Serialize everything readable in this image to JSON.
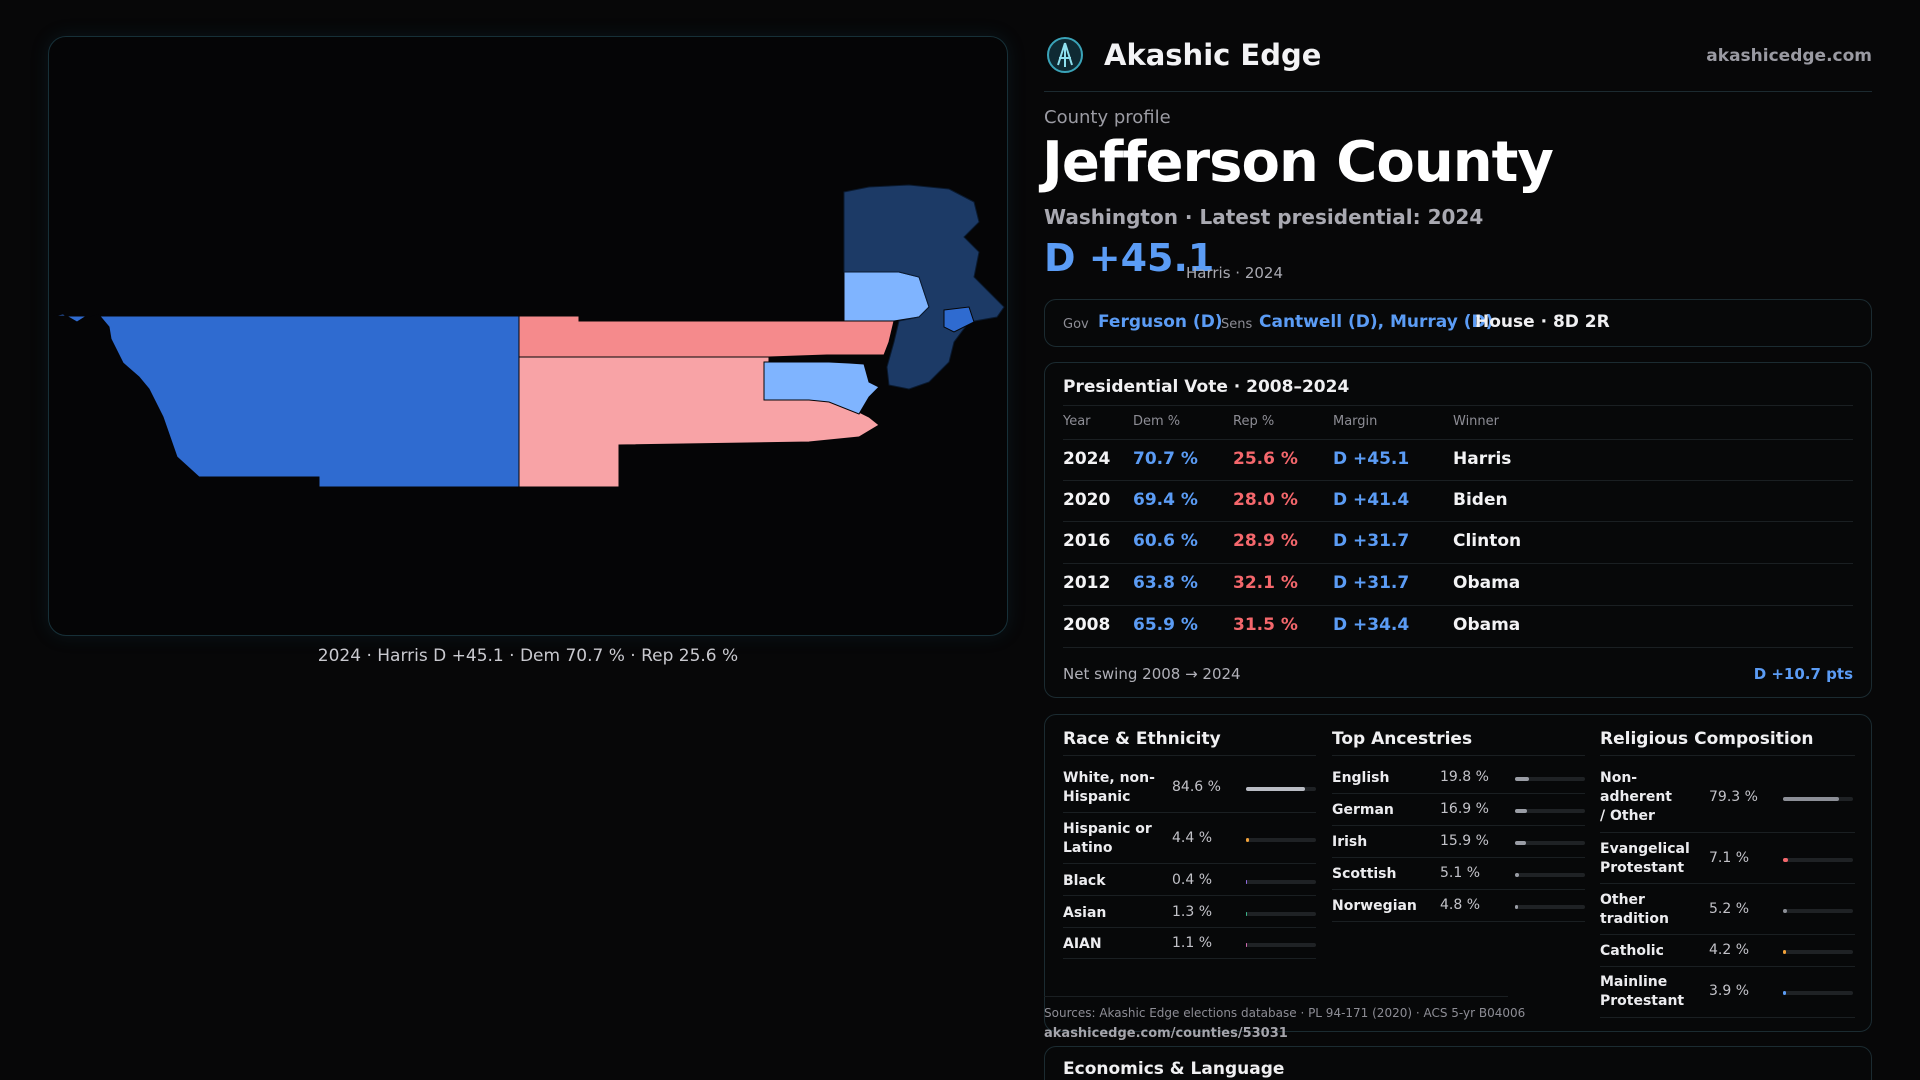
{
  "brand": {
    "name": "Akashic Edge",
    "site": "akashicedge.com",
    "logo_icon": "compass-logo-icon"
  },
  "profile": {
    "kicker": "County profile",
    "county": "Jefferson County",
    "subtitle": "Washington · Latest presidential: 2024",
    "margin": "D +45.1",
    "margin_note": "Harris · 2024"
  },
  "map": {
    "caption": "2024 · Harris D +45.1 · Dem 70.7 % · Rep 25.6 %",
    "colors": {
      "dem_strong": "#2f6bd0",
      "dem_light": "#7fb4ff",
      "dem_dark": "#1c3a66",
      "rep": "#f58a8c",
      "rep_light": "#f8a3a6"
    }
  },
  "officials": {
    "gov_label": "Gov",
    "gov": "Ferguson (D)",
    "sens_label": "Sens",
    "sens": "Cantwell (D), Murray (D)",
    "house": "House · 8D 2R"
  },
  "presidential": {
    "title": "Presidential Vote · 2008–2024",
    "headers": [
      "Year",
      "Dem %",
      "Rep %",
      "Margin",
      "Winner"
    ],
    "rows": [
      {
        "year": "2024",
        "dem": "70.7 %",
        "rep": "25.6 %",
        "margin": "D +45.1",
        "winner": "Harris"
      },
      {
        "year": "2020",
        "dem": "69.4 %",
        "rep": "28.0 %",
        "margin": "D +41.4",
        "winner": "Biden"
      },
      {
        "year": "2016",
        "dem": "60.6 %",
        "rep": "28.9 %",
        "margin": "D +31.7",
        "winner": "Clinton"
      },
      {
        "year": "2012",
        "dem": "63.8 %",
        "rep": "32.1 %",
        "margin": "D +31.7",
        "winner": "Obama"
      },
      {
        "year": "2008",
        "dem": "65.9 %",
        "rep": "31.5 %",
        "margin": "D +34.4",
        "winner": "Obama"
      }
    ],
    "swing_label": "Net swing 2008 → 2024",
    "swing_value": "D +10.7 pts"
  },
  "race": {
    "title": "Race & Ethnicity",
    "rows": [
      {
        "label": "White, non-Hispanic",
        "value": "84.6 %",
        "pct": 84.6,
        "color": "#b9bcc4"
      },
      {
        "label": "Hispanic or Latino",
        "value": "4.4 %",
        "pct": 4.4,
        "color": "#f2a23a"
      },
      {
        "label": "Black",
        "value": "0.4 %",
        "pct": 0.4,
        "color": "#8f6adf"
      },
      {
        "label": "Asian",
        "value": "1.3 %",
        "pct": 1.3,
        "color": "#3ab58a"
      },
      {
        "label": "AIAN",
        "value": "1.1 %",
        "pct": 1.1,
        "color": "#d06ab0"
      }
    ]
  },
  "ancestry": {
    "title": "Top Ancestries",
    "rows": [
      {
        "label": "English",
        "value": "19.8 %",
        "pct": 19.8,
        "color": "#9a9da5"
      },
      {
        "label": "German",
        "value": "16.9 %",
        "pct": 16.9,
        "color": "#9a9da5"
      },
      {
        "label": "Irish",
        "value": "15.9 %",
        "pct": 15.9,
        "color": "#9a9da5"
      },
      {
        "label": "Scottish",
        "value": "5.1 %",
        "pct": 5.1,
        "color": "#9a9da5"
      },
      {
        "label": "Norwegian",
        "value": "4.8 %",
        "pct": 4.8,
        "color": "#9a9da5"
      }
    ]
  },
  "religion": {
    "title": "Religious Composition",
    "rows": [
      {
        "label": "Non-adherent / Other",
        "value": "79.3 %",
        "pct": 79.3,
        "color": "#8c8f97"
      },
      {
        "label": "Evangelical Protestant",
        "value": "7.1 %",
        "pct": 7.1,
        "color": "#f4676c"
      },
      {
        "label": "Other tradition",
        "value": "5.2 %",
        "pct": 5.2,
        "color": "#8c8f97"
      },
      {
        "label": "Catholic",
        "value": "4.2 %",
        "pct": 4.2,
        "color": "#f2a23a"
      },
      {
        "label": "Mainline Protestant",
        "value": "3.9 %",
        "pct": 3.9,
        "color": "#5b9cf5"
      }
    ]
  },
  "sources": {
    "text": "Sources: Akashic Edge elections database · PL 94-171 (2020) · ACS 5-yr B04006",
    "url": "akashicedge.com/counties/53031"
  },
  "economics": {
    "title": "Economics & Language"
  }
}
